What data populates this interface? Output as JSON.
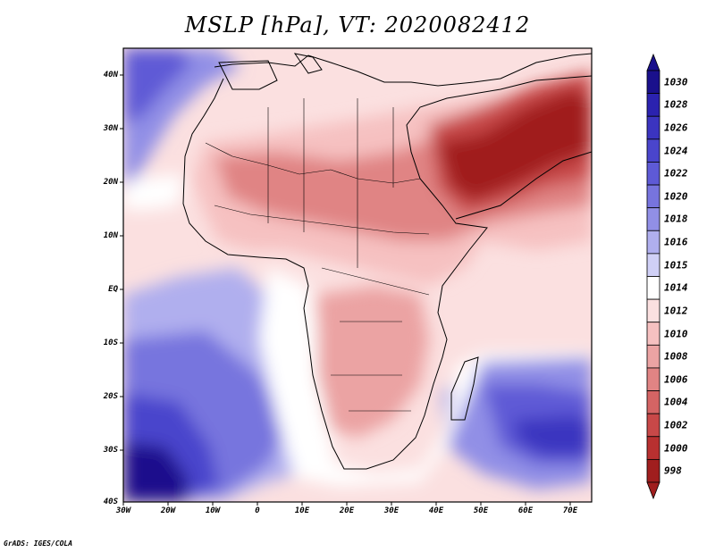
{
  "title": "MSLP [hPa], VT: 2020082412",
  "credit": "GrADS: IGES/COLA",
  "latitude_labels": [
    "40N",
    "30N",
    "20N",
    "10N",
    "EQ",
    "10S",
    "20S",
    "30S",
    "40S"
  ],
  "longitude_labels": [
    "30W",
    "20W",
    "10W",
    "0",
    "10E",
    "20E",
    "30E",
    "40E",
    "50E",
    "60E",
    "70E"
  ],
  "colorbar": {
    "levels": [
      "1030",
      "1028",
      "1026",
      "1024",
      "1022",
      "1020",
      "1018",
      "1016",
      "1015",
      "1014",
      "1012",
      "1010",
      "1008",
      "1006",
      "1004",
      "1002",
      "1000",
      "998"
    ],
    "colors": [
      "#1a108c",
      "#2b22b0",
      "#3b34c0",
      "#4a45cc",
      "#5e5ad6",
      "#7774de",
      "#918fe6",
      "#b0afee",
      "#d0d0f6",
      "#ffffff",
      "#fbe0e0",
      "#f6c1c1",
      "#eba3a3",
      "#e08484",
      "#d46464",
      "#c84848",
      "#b83030",
      "#a01e1e"
    ]
  }
}
